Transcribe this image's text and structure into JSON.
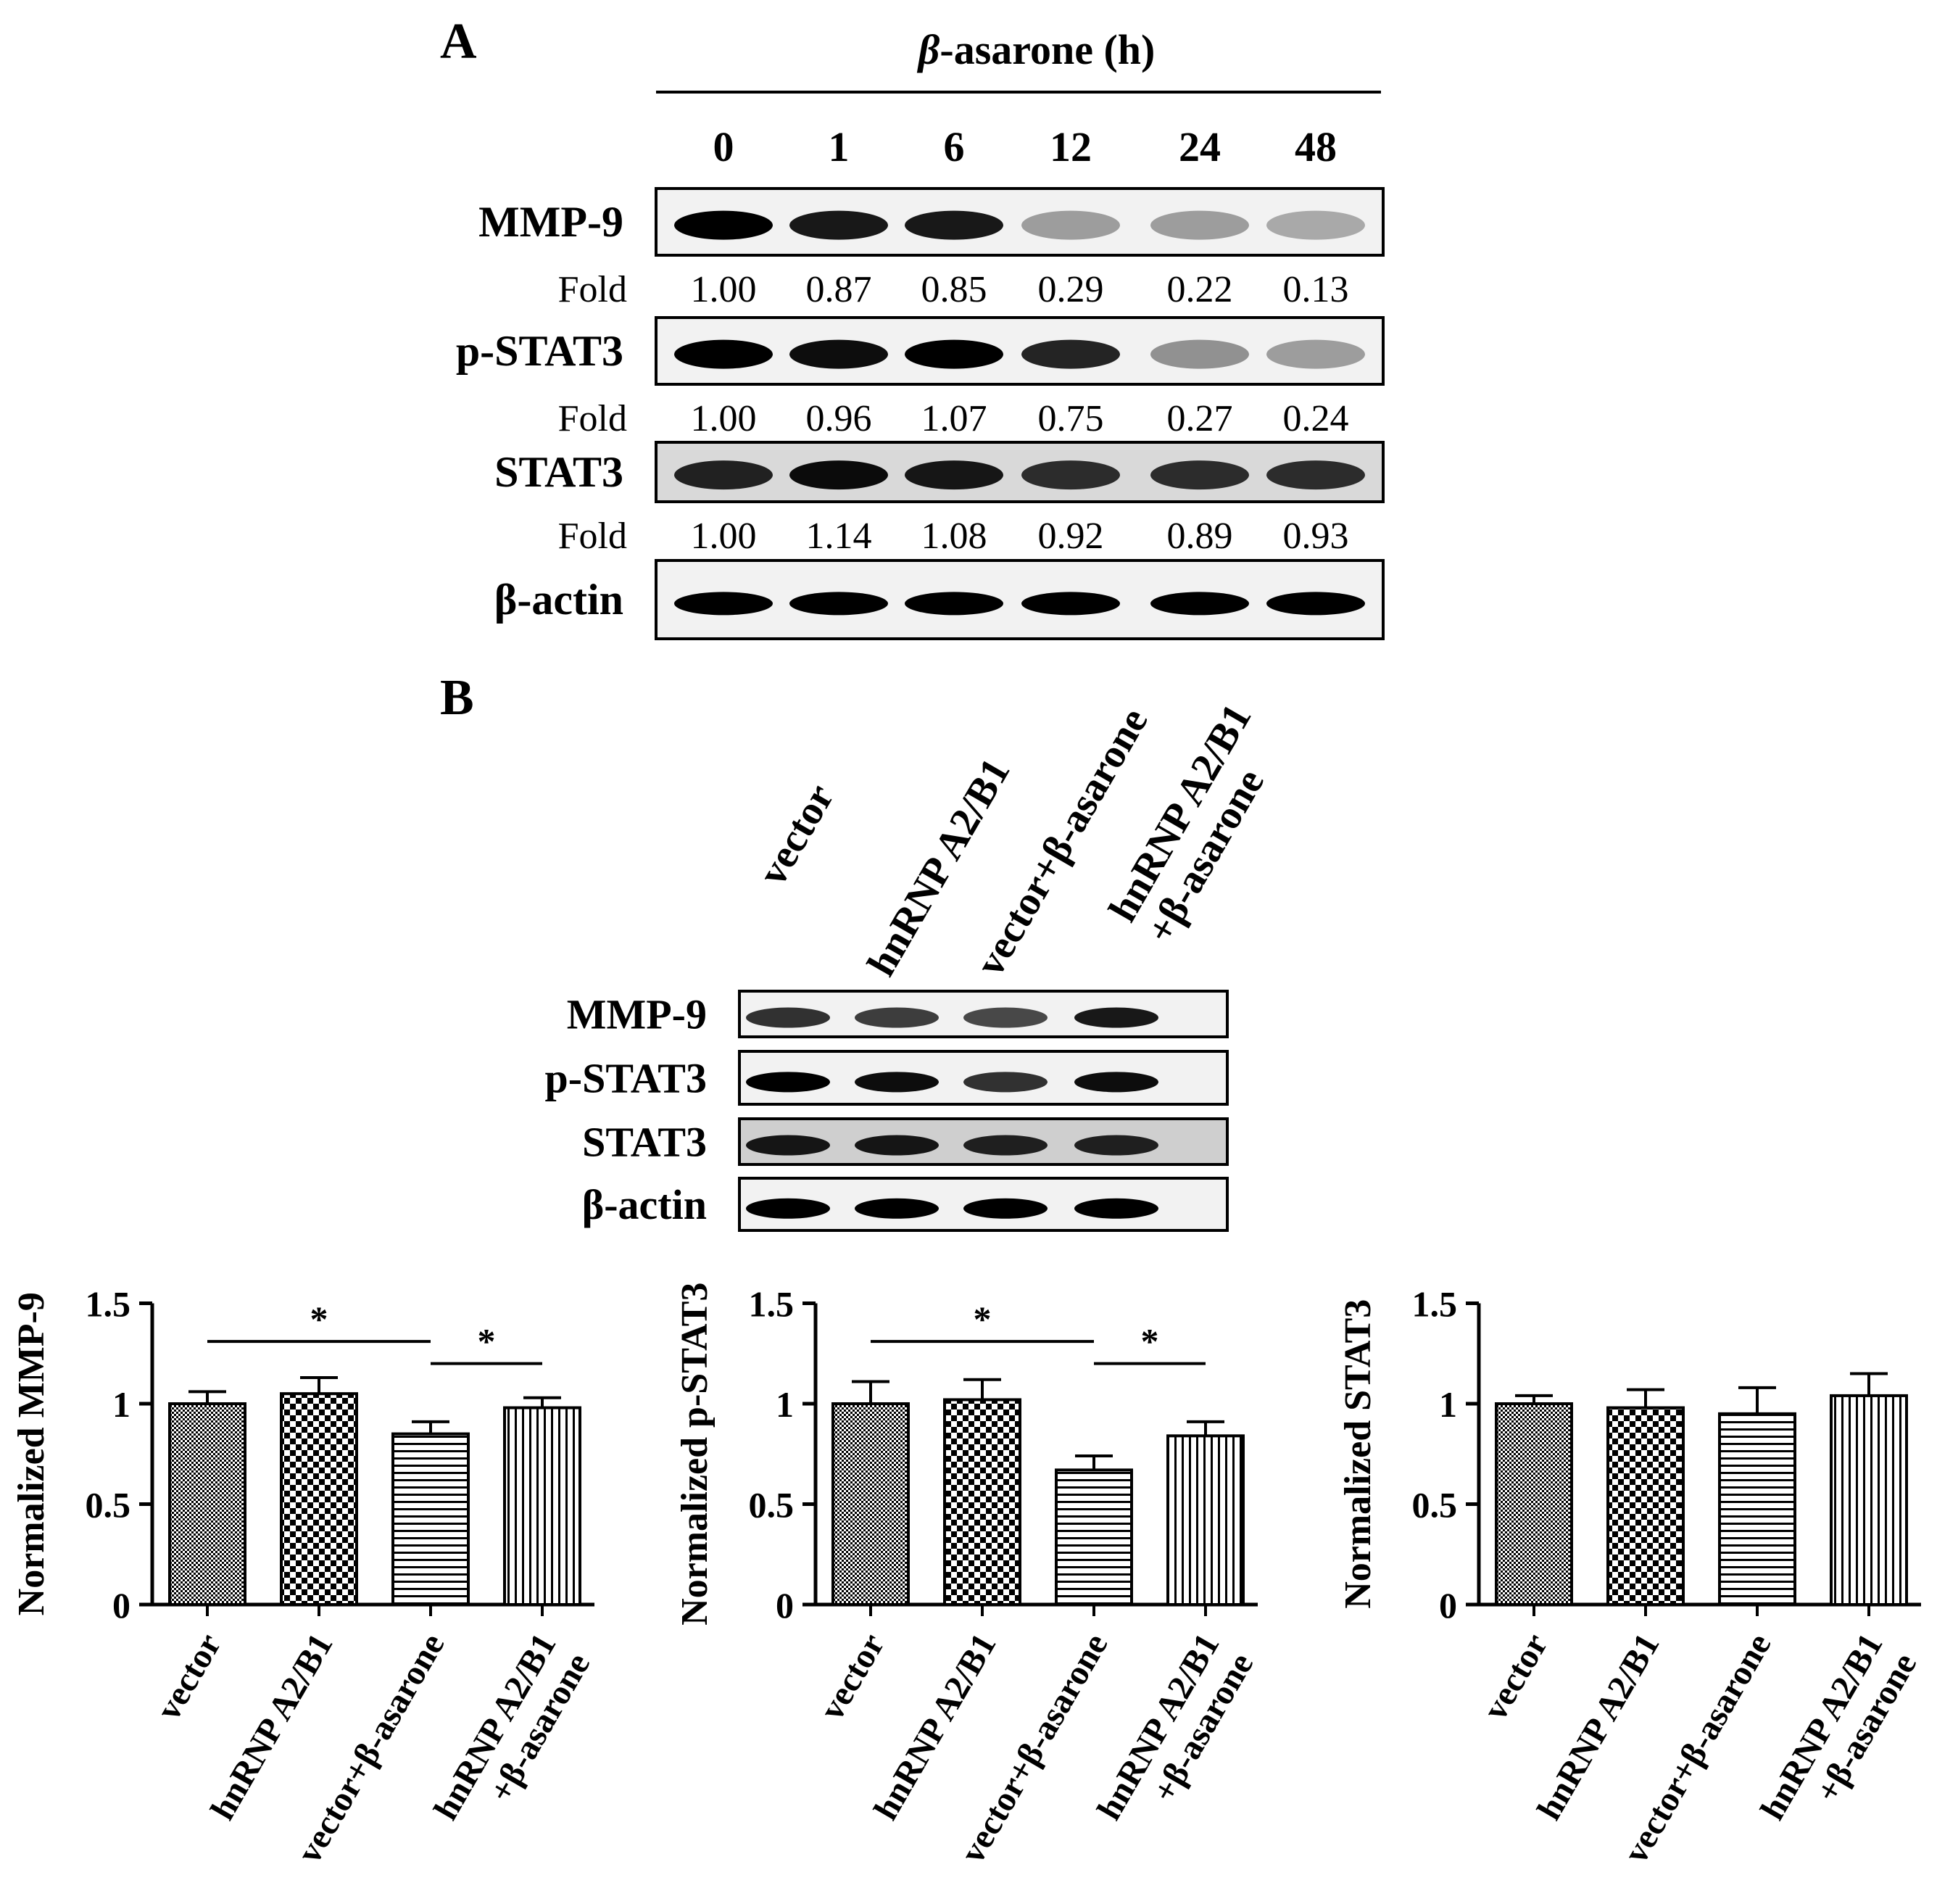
{
  "panel_a": {
    "label": "A",
    "header": "-asarone (h)",
    "header_beta": "β",
    "timepoints": [
      "0",
      "1",
      "6",
      "12",
      "24",
      "48"
    ],
    "blots": [
      {
        "name": "MMP-9",
        "fold_label": "Fold",
        "folds": [
          "1.00",
          "0.87",
          "0.85",
          "0.29",
          "0.22",
          "0.13"
        ]
      },
      {
        "name": "p-STAT3",
        "fold_label": "Fold",
        "folds": [
          "1.00",
          "0.96",
          "1.07",
          "0.75",
          "0.27",
          "0.24"
        ]
      },
      {
        "name": "STAT3",
        "fold_label": "Fold",
        "folds": [
          "1.00",
          "1.14",
          "1.08",
          "0.92",
          "0.89",
          "0.93"
        ]
      },
      {
        "name": "β-actin"
      }
    ]
  },
  "panel_b": {
    "label": "B",
    "lanes": [
      [
        "vector"
      ],
      [
        "hnRNP A2/B1"
      ],
      [
        "vector+β-asarone"
      ],
      [
        "hnRNP A2/B1",
        "+β-asarone"
      ]
    ],
    "blots": [
      "MMP-9",
      "p-STAT3",
      "STAT3",
      "β-actin"
    ]
  },
  "chart_data": [
    {
      "type": "bar",
      "ylabel": "Normalized MMP-9",
      "categories": [
        [
          "vector"
        ],
        [
          "hnRNP A2/B1"
        ],
        [
          "vector+β-asarone"
        ],
        [
          "hnRNP A2/B1",
          "+β-asarone"
        ]
      ],
      "values": [
        1.0,
        1.05,
        0.85,
        0.98
      ],
      "errors": [
        0.06,
        0.08,
        0.06,
        0.05
      ],
      "ylim": [
        0,
        1.5
      ],
      "yticks": [
        "0",
        "0.5",
        "1",
        "1.5"
      ],
      "significance": [
        {
          "from": 0,
          "to": 2,
          "label": "*"
        },
        {
          "from": 2,
          "to": 3,
          "label": "*"
        }
      ]
    },
    {
      "type": "bar",
      "ylabel": "Normalized p-STAT3",
      "categories": [
        [
          "vector"
        ],
        [
          "hnRNP A2/B1"
        ],
        [
          "vector+β-asarone"
        ],
        [
          "hnRNP A2/B1",
          "+β-asarone"
        ]
      ],
      "values": [
        1.0,
        1.02,
        0.67,
        0.84
      ],
      "errors": [
        0.11,
        0.1,
        0.07,
        0.07
      ],
      "ylim": [
        0,
        1.5
      ],
      "yticks": [
        "0",
        "0.5",
        "1",
        "1.5"
      ],
      "significance": [
        {
          "from": 0,
          "to": 2,
          "label": "*"
        },
        {
          "from": 2,
          "to": 3,
          "label": "*"
        }
      ]
    },
    {
      "type": "bar",
      "ylabel": "Normalized STAT3",
      "categories": [
        [
          "vector"
        ],
        [
          "hnRNP A2/B1"
        ],
        [
          "vector+β-asarone"
        ],
        [
          "hnRNP A2/B1",
          "+β-asarone"
        ]
      ],
      "values": [
        1.0,
        0.98,
        0.95,
        1.04
      ],
      "errors": [
        0.04,
        0.09,
        0.13,
        0.11
      ],
      "ylim": [
        0,
        1.5
      ],
      "yticks": [
        "0",
        "0.5",
        "1",
        "1.5"
      ],
      "significance": []
    }
  ]
}
